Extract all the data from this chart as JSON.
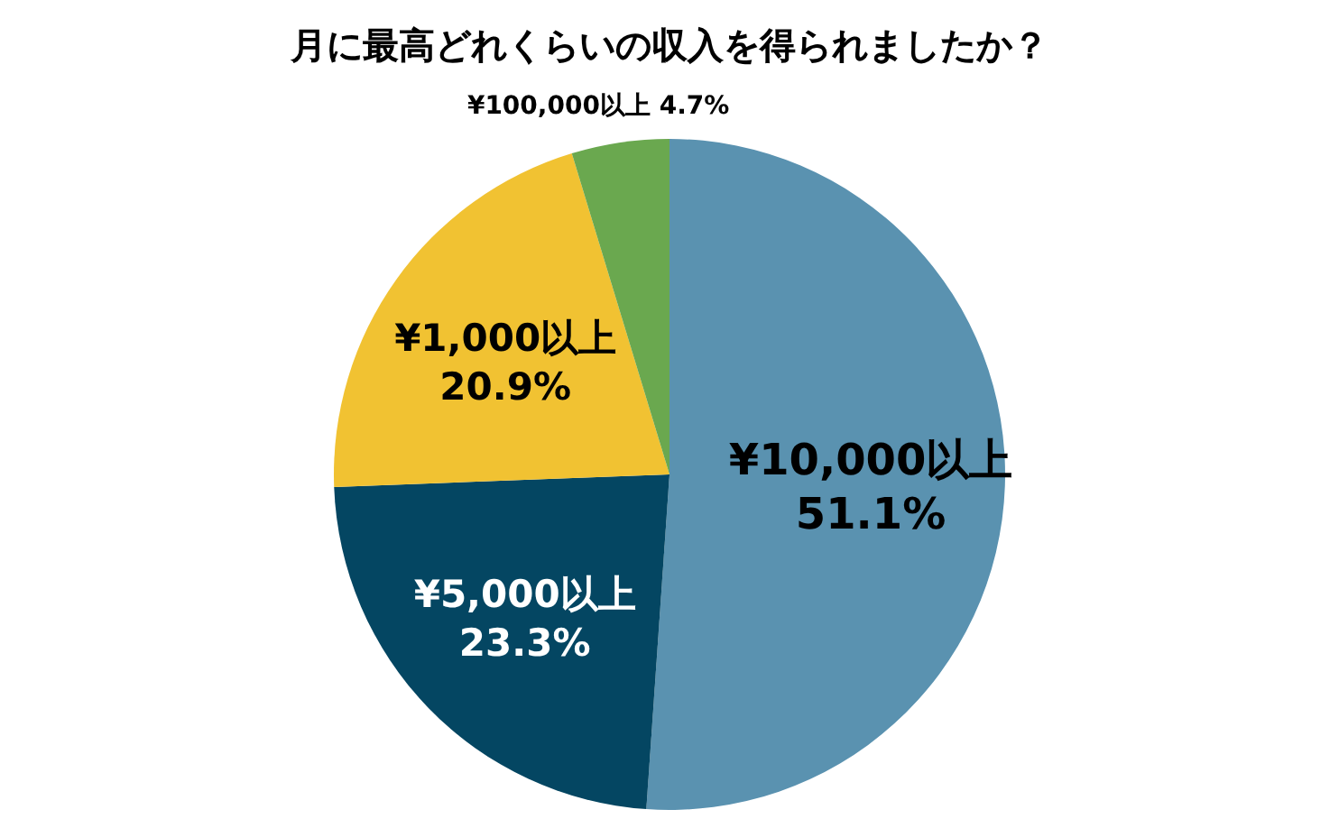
{
  "chart_data": {
    "type": "pie",
    "title": "月に最高どれくらいの収入を得られましたか？",
    "categories": [
      "¥10,000以上",
      "¥5,000以上",
      "¥1,000以上",
      "¥100,000以上"
    ],
    "values": [
      51.1,
      23.3,
      20.9,
      4.7
    ],
    "value_labels": [
      "51.1%",
      "23.3%",
      "20.9%",
      "4.7%"
    ],
    "colors": [
      "#5a92b0",
      "#044662",
      "#f1c232",
      "#6aa84f"
    ]
  }
}
